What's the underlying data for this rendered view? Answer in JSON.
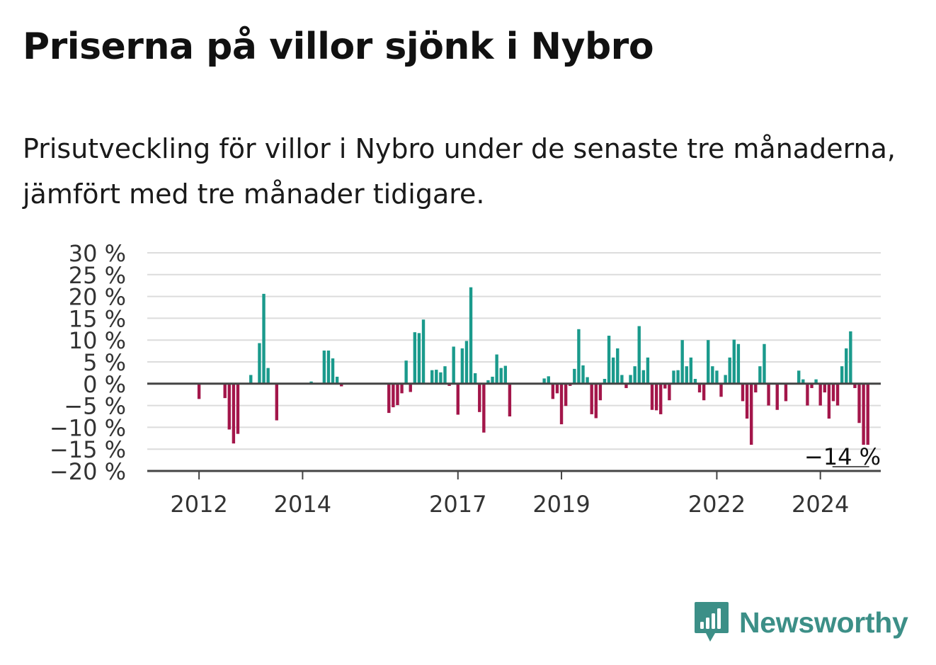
{
  "title": "Priserna på villor sjönk i Nybro",
  "subtitle": "Prisutveckling för villor i Nybro under de senaste tre månaderna, jämfört med tre månader tidigare.",
  "brand": {
    "name": "Newsworthy",
    "logo_icon": "bar-chart-speech-bubble-icon"
  },
  "colors": {
    "positive": "#1a9a8c",
    "negative": "#a3164a",
    "brand": "#3c8f87",
    "grid": "#dcdcdc",
    "axis": "#444444"
  },
  "chart_data": {
    "type": "bar",
    "ylabel": "",
    "xlabel": "",
    "ylim": [
      -20,
      30
    ],
    "yticks": [
      30,
      25,
      20,
      15,
      10,
      5,
      0,
      -5,
      -10,
      -15,
      -20
    ],
    "ytick_labels": [
      "30 %",
      "25 %",
      "20 %",
      "15 %",
      "10 %",
      "5 %",
      "0 %",
      "−5 %",
      "−10 %",
      "−15 %",
      "−20 %"
    ],
    "xlim": [
      "2011-01",
      "2025-03"
    ],
    "xticks": [
      "2012-01",
      "2014-01",
      "2017-01",
      "2019-01",
      "2022-01",
      "2024-01"
    ],
    "xtick_labels": [
      "2012",
      "2014",
      "2017",
      "2019",
      "2022",
      "2024"
    ],
    "grid": true,
    "last_value_label": "−14 %",
    "bars": [
      {
        "date": "2012-01",
        "value": -3.5
      },
      {
        "date": "2012-07",
        "value": -3.3
      },
      {
        "date": "2012-08",
        "value": -10.5
      },
      {
        "date": "2012-09",
        "value": -13.7
      },
      {
        "date": "2012-10",
        "value": -11.5
      },
      {
        "date": "2013-01",
        "value": 2.0
      },
      {
        "date": "2013-03",
        "value": 9.3
      },
      {
        "date": "2013-04",
        "value": 20.6
      },
      {
        "date": "2013-05",
        "value": 3.6
      },
      {
        "date": "2013-07",
        "value": -8.4
      },
      {
        "date": "2014-03",
        "value": 0.5
      },
      {
        "date": "2014-06",
        "value": 7.6
      },
      {
        "date": "2014-07",
        "value": 7.6
      },
      {
        "date": "2014-08",
        "value": 5.8
      },
      {
        "date": "2014-09",
        "value": 1.6
      },
      {
        "date": "2014-10",
        "value": -0.6
      },
      {
        "date": "2015-09",
        "value": -6.7
      },
      {
        "date": "2015-10",
        "value": -5.4
      },
      {
        "date": "2015-11",
        "value": -4.9
      },
      {
        "date": "2015-12",
        "value": -2.2
      },
      {
        "date": "2016-01",
        "value": 5.3
      },
      {
        "date": "2016-02",
        "value": -1.9
      },
      {
        "date": "2016-03",
        "value": 11.8
      },
      {
        "date": "2016-04",
        "value": 11.6
      },
      {
        "date": "2016-05",
        "value": 14.7
      },
      {
        "date": "2016-07",
        "value": 3.1
      },
      {
        "date": "2016-08",
        "value": 3.2
      },
      {
        "date": "2016-09",
        "value": 2.6
      },
      {
        "date": "2016-10",
        "value": 4.0
      },
      {
        "date": "2016-11",
        "value": -0.5
      },
      {
        "date": "2016-12",
        "value": 8.5
      },
      {
        "date": "2017-01",
        "value": -7.1
      },
      {
        "date": "2017-02",
        "value": 8.1
      },
      {
        "date": "2017-03",
        "value": 9.8
      },
      {
        "date": "2017-04",
        "value": 22.1
      },
      {
        "date": "2017-05",
        "value": 2.4
      },
      {
        "date": "2017-06",
        "value": -6.5
      },
      {
        "date": "2017-07",
        "value": -11.2
      },
      {
        "date": "2017-08",
        "value": 0.8
      },
      {
        "date": "2017-09",
        "value": 1.6
      },
      {
        "date": "2017-10",
        "value": 6.7
      },
      {
        "date": "2017-11",
        "value": 3.6
      },
      {
        "date": "2017-12",
        "value": 4.1
      },
      {
        "date": "2018-01",
        "value": -7.5
      },
      {
        "date": "2018-09",
        "value": 1.2
      },
      {
        "date": "2018-10",
        "value": 1.7
      },
      {
        "date": "2018-11",
        "value": -3.5
      },
      {
        "date": "2018-12",
        "value": -2.2
      },
      {
        "date": "2019-01",
        "value": -9.3
      },
      {
        "date": "2019-02",
        "value": -5.1
      },
      {
        "date": "2019-03",
        "value": -0.5
      },
      {
        "date": "2019-04",
        "value": 3.4
      },
      {
        "date": "2019-05",
        "value": 12.5
      },
      {
        "date": "2019-06",
        "value": 4.2
      },
      {
        "date": "2019-07",
        "value": 1.5
      },
      {
        "date": "2019-08",
        "value": -7.0
      },
      {
        "date": "2019-09",
        "value": -7.9
      },
      {
        "date": "2019-10",
        "value": -3.8
      },
      {
        "date": "2019-11",
        "value": 1.1
      },
      {
        "date": "2019-12",
        "value": 11.0
      },
      {
        "date": "2020-01",
        "value": 6.0
      },
      {
        "date": "2020-02",
        "value": 8.1
      },
      {
        "date": "2020-03",
        "value": 2.0
      },
      {
        "date": "2020-04",
        "value": -1.0
      },
      {
        "date": "2020-05",
        "value": 2.0
      },
      {
        "date": "2020-06",
        "value": 4.0
      },
      {
        "date": "2020-07",
        "value": 13.2
      },
      {
        "date": "2020-08",
        "value": 3.1
      },
      {
        "date": "2020-09",
        "value": 6.0
      },
      {
        "date": "2020-10",
        "value": -6.0
      },
      {
        "date": "2020-11",
        "value": -6.1
      },
      {
        "date": "2020-12",
        "value": -7.0
      },
      {
        "date": "2021-01",
        "value": -1.1
      },
      {
        "date": "2021-02",
        "value": -3.8
      },
      {
        "date": "2021-03",
        "value": 3.0
      },
      {
        "date": "2021-04",
        "value": 3.1
      },
      {
        "date": "2021-05",
        "value": 10.0
      },
      {
        "date": "2021-06",
        "value": 4.0
      },
      {
        "date": "2021-07",
        "value": 6.0
      },
      {
        "date": "2021-08",
        "value": 1.1
      },
      {
        "date": "2021-09",
        "value": -2.0
      },
      {
        "date": "2021-10",
        "value": -3.8
      },
      {
        "date": "2021-11",
        "value": 10.0
      },
      {
        "date": "2021-12",
        "value": 4.0
      },
      {
        "date": "2022-01",
        "value": 3.0
      },
      {
        "date": "2022-02",
        "value": -3.0
      },
      {
        "date": "2022-03",
        "value": 2.0
      },
      {
        "date": "2022-04",
        "value": 6.0
      },
      {
        "date": "2022-05",
        "value": 10.1
      },
      {
        "date": "2022-06",
        "value": 9.1
      },
      {
        "date": "2022-07",
        "value": -4.0
      },
      {
        "date": "2022-08",
        "value": -8.0
      },
      {
        "date": "2022-09",
        "value": -14.0
      },
      {
        "date": "2022-10",
        "value": -2.0
      },
      {
        "date": "2022-11",
        "value": 4.0
      },
      {
        "date": "2022-12",
        "value": 9.1
      },
      {
        "date": "2023-01",
        "value": -5.0
      },
      {
        "date": "2023-03",
        "value": -6.0
      },
      {
        "date": "2023-05",
        "value": -4.0
      },
      {
        "date": "2023-08",
        "value": 3.0
      },
      {
        "date": "2023-09",
        "value": 1.0
      },
      {
        "date": "2023-10",
        "value": -5.0
      },
      {
        "date": "2023-11",
        "value": -1.0
      },
      {
        "date": "2023-12",
        "value": 1.0
      },
      {
        "date": "2024-01",
        "value": -5.0
      },
      {
        "date": "2024-02",
        "value": -2.0
      },
      {
        "date": "2024-03",
        "value": -8.0
      },
      {
        "date": "2024-04",
        "value": -4.0
      },
      {
        "date": "2024-05",
        "value": -5.0
      },
      {
        "date": "2024-06",
        "value": 4.0
      },
      {
        "date": "2024-07",
        "value": 8.1
      },
      {
        "date": "2024-08",
        "value": 12.0
      },
      {
        "date": "2024-09",
        "value": -1.0
      },
      {
        "date": "2024-10",
        "value": -9.0
      },
      {
        "date": "2024-11",
        "value": -14.0
      },
      {
        "date": "2024-12",
        "value": -14.0
      }
    ]
  }
}
